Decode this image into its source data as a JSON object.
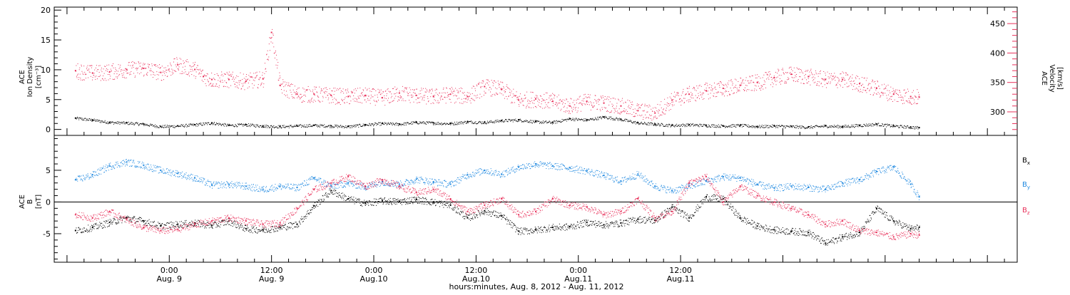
{
  "colors": {
    "black": "#000000",
    "pink": "#e8305a",
    "blue": "#1e88e0"
  },
  "chart_data": [
    {
      "type": "scatter",
      "ylabel": [
        "ACE",
        "Ion Density",
        "[cm⁻³]"
      ],
      "y2label": [
        "ACE",
        "Velocity",
        "[km/s]"
      ],
      "ylim": [
        -1,
        20.5
      ],
      "y2lim": [
        260,
        478
      ],
      "yticks": [
        0,
        5,
        10,
        15,
        20
      ],
      "y2ticks": [
        300,
        350,
        400,
        450
      ],
      "series": [
        {
          "axis": "left",
          "color": "#000000",
          "x": [
            -11,
            -9,
            -7,
            -5,
            -3,
            -1,
            1,
            3,
            5,
            7,
            9,
            11,
            13,
            15,
            17,
            19,
            21,
            23,
            25,
            27,
            29,
            31,
            33,
            35,
            37,
            39,
            41,
            43,
            45,
            47,
            49,
            51,
            53,
            55,
            57,
            59,
            61,
            63,
            65,
            67,
            69,
            71,
            73,
            75,
            77,
            79,
            81,
            83,
            85,
            87,
            88
          ],
          "values": [
            1.9,
            1.6,
            1.2,
            1.1,
            0.9,
            0.5,
            0.6,
            0.8,
            1.1,
            0.7,
            0.8,
            0.6,
            0.5,
            0.6,
            0.7,
            0.6,
            0.5,
            0.8,
            1.0,
            0.9,
            1.2,
            1.1,
            1.0,
            1.3,
            1.2,
            1.5,
            1.6,
            1.3,
            1.2,
            1.8,
            1.6,
            2.1,
            1.7,
            1.1,
            0.9,
            0.7,
            0.8,
            0.7,
            0.6,
            0.7,
            0.5,
            0.6,
            0.5,
            0.4,
            0.6,
            0.5,
            0.7,
            0.9,
            0.6,
            0.4,
            0.3
          ]
        },
        {
          "axis": "right",
          "color": "#e8305a",
          "x": [
            -11,
            -9,
            -7,
            -5,
            -3,
            -1,
            1,
            3,
            4,
            5,
            7,
            9,
            11,
            12,
            13,
            15,
            17,
            19,
            21,
            23,
            25,
            27,
            29,
            31,
            33,
            35,
            37,
            39,
            41,
            43,
            45,
            47,
            49,
            51,
            53,
            55,
            57,
            59,
            61,
            63,
            65,
            67,
            69,
            71,
            73,
            75,
            77,
            79,
            81,
            83,
            85,
            87,
            88
          ],
          "values": [
            370,
            366,
            368,
            372,
            374,
            367,
            380,
            372,
            360,
            355,
            355,
            352,
            356,
            435,
            345,
            330,
            330,
            328,
            326,
            328,
            324,
            332,
            328,
            326,
            330,
            326,
            343,
            338,
            320,
            322,
            318,
            310,
            318,
            315,
            310,
            302,
            298,
            320,
            330,
            336,
            340,
            345,
            350,
            358,
            364,
            360,
            355,
            355,
            348,
            340,
            330,
            326,
            325
          ]
        }
      ]
    },
    {
      "type": "scatter",
      "ylabel": [
        "ACE",
        "B",
        "[nT]"
      ],
      "ylim": [
        -9.5,
        10.5
      ],
      "yticks": [
        -5,
        0,
        5
      ],
      "hline": 0,
      "legend": [
        {
          "label": "B",
          "sub": "x",
          "color": "#000000"
        },
        {
          "label": "B",
          "sub": "y",
          "color": "#1e88e0"
        },
        {
          "label": "B",
          "sub": "z",
          "color": "#e8305a"
        }
      ],
      "series": [
        {
          "name": "Bx",
          "color": "#000000",
          "x": [
            -11,
            -9,
            -7,
            -5,
            -3,
            -1,
            1,
            3,
            5,
            7,
            9,
            11,
            13,
            15,
            17,
            19,
            21,
            23,
            25,
            27,
            29,
            31,
            33,
            35,
            37,
            39,
            41,
            43,
            45,
            47,
            49,
            51,
            53,
            55,
            57,
            59,
            61,
            63,
            65,
            67,
            69,
            71,
            73,
            75,
            77,
            79,
            81,
            83,
            85,
            87,
            88
          ],
          "values": [
            -4.5,
            -4.0,
            -3.2,
            -2.5,
            -3.0,
            -3.8,
            -3.5,
            -3.3,
            -3.7,
            -3.0,
            -4.2,
            -4.4,
            -4.0,
            -3.5,
            -0.6,
            1.8,
            0.5,
            -0.2,
            0.2,
            0.1,
            0.4,
            0.0,
            -0.5,
            -2.5,
            -1.4,
            -2.2,
            -4.6,
            -4.4,
            -4.0,
            -3.9,
            -3.2,
            -3.6,
            -3.3,
            -2.7,
            -2.9,
            -0.8,
            -2.5,
            0.8,
            0.5,
            -2.5,
            -3.8,
            -4.4,
            -4.6,
            -4.8,
            -6.5,
            -5.5,
            -4.8,
            -1.0,
            -3.0,
            -4.2,
            -4.0
          ]
        },
        {
          "name": "By",
          "color": "#1e88e0",
          "x": [
            -11,
            -9,
            -7,
            -5,
            -3,
            -1,
            1,
            3,
            5,
            7,
            9,
            11,
            13,
            15,
            17,
            19,
            21,
            23,
            25,
            27,
            29,
            31,
            33,
            35,
            37,
            39,
            41,
            43,
            45,
            47,
            49,
            51,
            53,
            55,
            57,
            59,
            61,
            63,
            65,
            67,
            69,
            71,
            73,
            75,
            77,
            79,
            81,
            83,
            85,
            87,
            88
          ],
          "values": [
            3.5,
            4.3,
            5.7,
            6.3,
            5.8,
            5.0,
            4.5,
            3.8,
            2.7,
            2.8,
            2.5,
            2.0,
            2.5,
            2.3,
            3.8,
            2.5,
            3.0,
            2.4,
            3.2,
            2.8,
            3.6,
            3.2,
            2.8,
            4.3,
            5.0,
            4.4,
            5.5,
            6.0,
            5.7,
            5.4,
            4.9,
            4.2,
            3.3,
            4.4,
            2.5,
            1.8,
            2.5,
            3.3,
            4.0,
            3.8,
            2.8,
            2.2,
            2.5,
            2.3,
            2.0,
            3.0,
            3.5,
            4.8,
            5.5,
            2.8,
            0.8
          ]
        },
        {
          "name": "Bz",
          "color": "#e8305a",
          "x": [
            -11,
            -9,
            -7,
            -5,
            -3,
            -1,
            1,
            3,
            5,
            7,
            9,
            11,
            13,
            15,
            17,
            19,
            21,
            23,
            25,
            27,
            29,
            31,
            33,
            35,
            37,
            39,
            41,
            43,
            45,
            47,
            49,
            51,
            53,
            55,
            57,
            59,
            61,
            63,
            65,
            67,
            69,
            71,
            73,
            75,
            77,
            79,
            81,
            83,
            85,
            87,
            88
          ],
          "values": [
            -2.0,
            -2.5,
            -1.5,
            -2.8,
            -4.0,
            -4.5,
            -4.3,
            -3.5,
            -3.0,
            -2.5,
            -3.0,
            -3.5,
            -3.3,
            -1.0,
            2.0,
            3.0,
            4.0,
            2.5,
            3.5,
            2.5,
            1.5,
            2.0,
            0.5,
            -1.5,
            -0.5,
            0.5,
            -2.0,
            -1.5,
            0.5,
            -0.5,
            -0.8,
            -2.0,
            -1.5,
            0.5,
            -2.5,
            -1.5,
            3.0,
            4.0,
            0.0,
            2.5,
            1.0,
            0.0,
            -1.0,
            -2.0,
            -3.5,
            -3.0,
            -4.5,
            -4.8,
            -5.5,
            -5.0,
            -5.2
          ]
        }
      ]
    }
  ],
  "x_axis": {
    "xlim": [
      -13.5,
      99.5
    ],
    "major_ticks": [
      {
        "x": 0,
        "time": "0:00",
        "date": "Aug. 9"
      },
      {
        "x": 12,
        "time": "12:00",
        "date": "Aug. 9"
      },
      {
        "x": 24,
        "time": "0:00",
        "date": "Aug.10"
      },
      {
        "x": 36,
        "time": "12:00",
        "date": "Aug.10"
      },
      {
        "x": 48,
        "time": "0:00",
        "date": "Aug.11"
      },
      {
        "x": 60,
        "time": "12:00",
        "date": "Aug.11"
      }
    ],
    "title": "hours:minutes, Aug.  8, 2012 - Aug. 11, 2012"
  }
}
